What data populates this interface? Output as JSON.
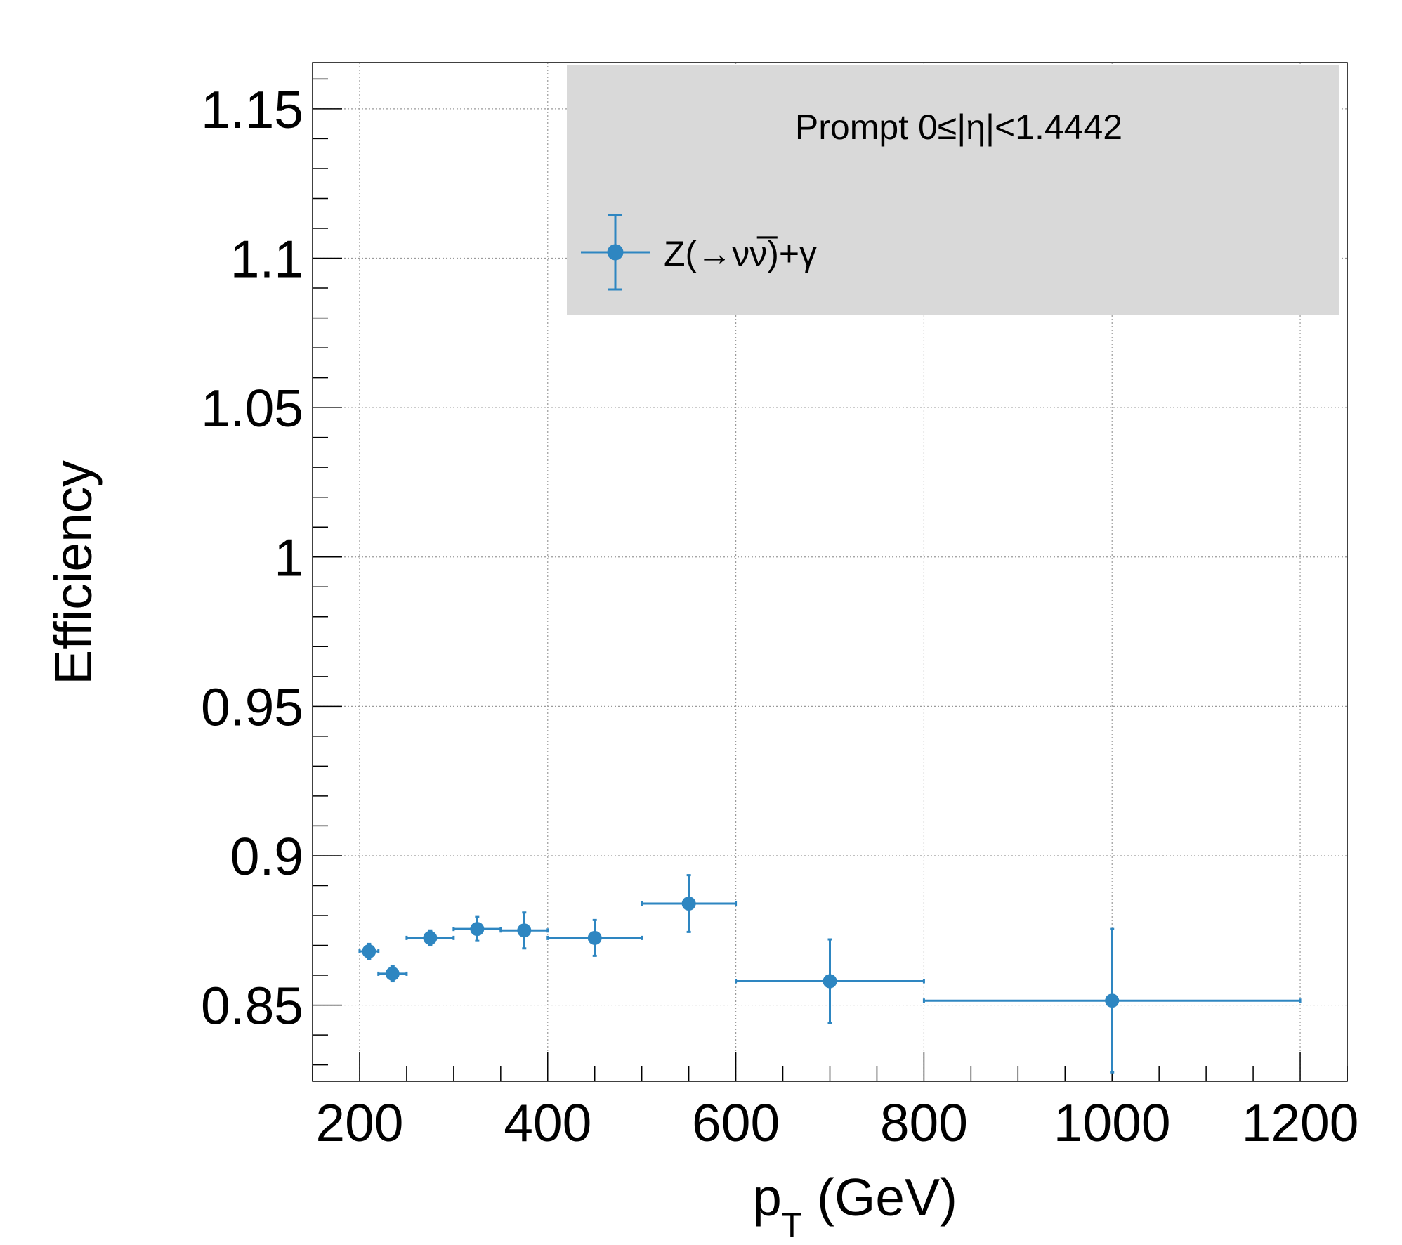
{
  "chart_data": {
    "type": "scatter",
    "xlabel_main": "p",
    "xlabel_sub": "T",
    "xlabel_unit": " (GeV)",
    "ylabel": "Efficiency",
    "xlim": [
      150,
      1250
    ],
    "ylim": [
      0.8245,
      1.1655
    ],
    "x_ticks": [
      200,
      400,
      600,
      800,
      1000,
      1200
    ],
    "y_ticks": [
      0.85,
      0.9,
      0.95,
      1,
      1.05,
      1.1,
      1.15
    ],
    "x_tick_labels": [
      "200",
      "400",
      "600",
      "800",
      "1000",
      "1200"
    ],
    "y_tick_labels": [
      "0.85",
      "0.9",
      "0.95",
      "1",
      "1.05",
      "1.1",
      "1.15"
    ],
    "grid": true,
    "legend": {
      "placement": "top-right",
      "header": "Prompt  0≤|η|<1.4442",
      "entry": "Z(→νν̅)+γ",
      "background": "#d9d9d9"
    },
    "series": [
      {
        "name": "Z(→νν̅)+γ",
        "color": "#2e86c1",
        "points": [
          {
            "x": 210,
            "xlo": 200,
            "xhi": 220,
            "y": 0.868,
            "ylo": 0.8655,
            "yhi": 0.8705
          },
          {
            "x": 235,
            "xlo": 220,
            "xhi": 250,
            "y": 0.8605,
            "ylo": 0.858,
            "yhi": 0.863
          },
          {
            "x": 275,
            "xlo": 250,
            "xhi": 300,
            "y": 0.8725,
            "ylo": 0.87,
            "yhi": 0.875
          },
          {
            "x": 325,
            "xlo": 300,
            "xhi": 350,
            "y": 0.8755,
            "ylo": 0.8715,
            "yhi": 0.8795
          },
          {
            "x": 375,
            "xlo": 350,
            "xhi": 400,
            "y": 0.875,
            "ylo": 0.869,
            "yhi": 0.881
          },
          {
            "x": 450,
            "xlo": 400,
            "xhi": 500,
            "y": 0.8725,
            "ylo": 0.8665,
            "yhi": 0.8785
          },
          {
            "x": 550,
            "xlo": 500,
            "xhi": 600,
            "y": 0.884,
            "ylo": 0.8745,
            "yhi": 0.8935
          },
          {
            "x": 700,
            "xlo": 600,
            "xhi": 800,
            "y": 0.858,
            "ylo": 0.844,
            "yhi": 0.872
          },
          {
            "x": 1000,
            "xlo": 800,
            "xhi": 1200,
            "y": 0.8515,
            "ylo": 0.8275,
            "yhi": 0.8755
          }
        ]
      }
    ]
  }
}
